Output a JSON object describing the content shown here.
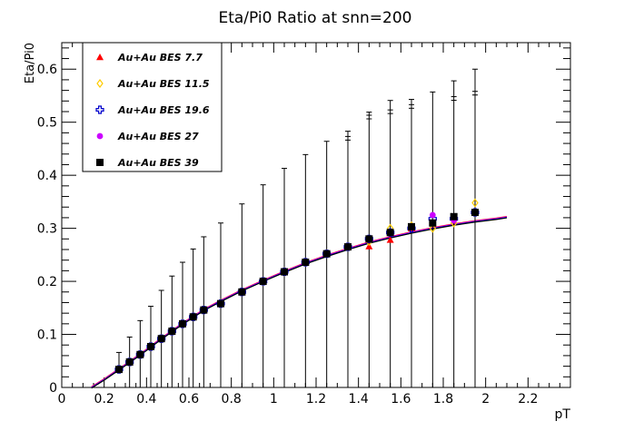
{
  "chart_data": {
    "type": "scatter",
    "title": "Eta/Pi0 Ratio at   snn=200",
    "xlabel": "pT",
    "ylabel": "Eta/Pi0",
    "xlim": [
      0,
      2.4
    ],
    "ylim": [
      0,
      0.65
    ],
    "grid": false,
    "legend_position": "top-left",
    "x_ticks": [
      "0",
      "0.2",
      "0.4",
      "0.6",
      "0.8",
      "1",
      "1.2",
      "1.4",
      "1.6",
      "1.8",
      "2",
      "2.2"
    ],
    "y_ticks": [
      "0",
      "0.1",
      "0.2",
      "0.3",
      "0.4",
      "0.5",
      "0.6"
    ],
    "series": [
      {
        "name": "Au+Au BES 7.7",
        "marker": "triangle",
        "color": "#ff0000",
        "x": [
          0.27,
          0.32,
          0.37,
          0.42,
          0.47,
          0.52,
          0.57,
          0.62,
          0.67,
          0.75,
          0.85,
          0.95,
          1.05,
          1.15,
          1.25,
          1.35,
          1.45,
          1.55,
          1.65,
          1.75,
          1.85,
          1.95
        ],
        "y": [
          0.034,
          0.048,
          0.062,
          0.077,
          0.092,
          0.106,
          0.12,
          0.133,
          0.146,
          0.158,
          0.18,
          0.2,
          0.218,
          0.236,
          0.252,
          0.265,
          0.266,
          0.278,
          0.3,
          0.31,
          0.32,
          0.33
        ]
      },
      {
        "name": "Au+Au BES 11.5",
        "marker": "diamond-open",
        "color": "#ffcc00",
        "x": [
          0.27,
          0.32,
          0.37,
          0.42,
          0.47,
          0.52,
          0.57,
          0.62,
          0.67,
          0.75,
          0.85,
          0.95,
          1.05,
          1.15,
          1.25,
          1.35,
          1.45,
          1.55,
          1.65,
          1.75,
          1.85,
          1.95
        ],
        "y": [
          0.034,
          0.048,
          0.062,
          0.077,
          0.092,
          0.106,
          0.12,
          0.133,
          0.146,
          0.158,
          0.18,
          0.2,
          0.218,
          0.236,
          0.252,
          0.265,
          0.275,
          0.3,
          0.305,
          0.3,
          0.31,
          0.348
        ]
      },
      {
        "name": "Au+Au BES 19.6",
        "marker": "cross-open",
        "color": "#0000cc",
        "x": [
          0.27,
          0.32,
          0.37,
          0.42,
          0.47,
          0.52,
          0.57,
          0.62,
          0.67,
          0.75,
          0.85,
          0.95,
          1.05,
          1.15,
          1.25,
          1.35,
          1.45,
          1.55,
          1.65,
          1.75,
          1.85,
          1.95
        ],
        "y": [
          0.034,
          0.048,
          0.062,
          0.077,
          0.092,
          0.106,
          0.12,
          0.133,
          0.146,
          0.158,
          0.18,
          0.2,
          0.218,
          0.236,
          0.252,
          0.265,
          0.28,
          0.292,
          0.3,
          0.318,
          0.318,
          0.33
        ]
      },
      {
        "name": "Au+Au BES 27",
        "marker": "circle",
        "color": "#cc00ff",
        "x": [
          0.27,
          0.32,
          0.37,
          0.42,
          0.47,
          0.52,
          0.57,
          0.62,
          0.67,
          0.75,
          0.85,
          0.95,
          1.05,
          1.15,
          1.25,
          1.35,
          1.45,
          1.55,
          1.65,
          1.75,
          1.85,
          1.95
        ],
        "y": [
          0.034,
          0.048,
          0.062,
          0.077,
          0.092,
          0.106,
          0.12,
          0.133,
          0.146,
          0.158,
          0.18,
          0.2,
          0.218,
          0.236,
          0.252,
          0.265,
          0.28,
          0.292,
          0.303,
          0.325,
          0.315,
          0.33
        ]
      },
      {
        "name": "Au+Au BES 39",
        "marker": "square",
        "color": "#000000",
        "x": [
          0.27,
          0.32,
          0.37,
          0.42,
          0.47,
          0.52,
          0.57,
          0.62,
          0.67,
          0.75,
          0.85,
          0.95,
          1.05,
          1.15,
          1.25,
          1.35,
          1.45,
          1.55,
          1.65,
          1.75,
          1.85,
          1.95
        ],
        "y": [
          0.034,
          0.048,
          0.062,
          0.077,
          0.092,
          0.106,
          0.12,
          0.133,
          0.146,
          0.158,
          0.18,
          0.2,
          0.218,
          0.236,
          0.252,
          0.265,
          0.28,
          0.292,
          0.303,
          0.31,
          0.322,
          0.33
        ],
        "y_err_low": [
          0.002,
          0.048,
          0.062,
          0.077,
          0.092,
          0.106,
          0.12,
          0.133,
          0.146,
          0.158,
          0.18,
          0.2,
          0.218,
          0.236,
          0.252,
          0.265,
          0.28,
          0.292,
          0.303,
          0.31,
          0.322,
          0.33
        ],
        "y_err_high": [
          0.032,
          0.047,
          0.064,
          0.076,
          0.091,
          0.104,
          0.116,
          0.128,
          0.138,
          0.152,
          0.166,
          0.182,
          0.195,
          0.203,
          0.212,
          0.218,
          0.239,
          0.249,
          0.24,
          0.247,
          0.256,
          0.27
        ],
        "y_upper_caps": [
          0.48,
          0.52,
          0.53,
          0.54,
          0.555,
          0.565
        ],
        "x_upper_caps": [
          1.35,
          1.45,
          1.55,
          1.65,
          1.85,
          1.95
        ]
      }
    ],
    "fit_curves": [
      {
        "color": "#ff0000"
      },
      {
        "color": "#ff00ff"
      },
      {
        "color": "#0000ff"
      },
      {
        "color": "#000000"
      }
    ],
    "fit_curve_points": {
      "x": [
        0.14,
        0.2,
        0.27,
        0.32,
        0.37,
        0.42,
        0.47,
        0.52,
        0.57,
        0.62,
        0.67,
        0.75,
        0.85,
        0.95,
        1.05,
        1.15,
        1.25,
        1.35,
        1.45,
        1.55,
        1.65,
        1.75,
        1.85,
        1.95,
        2.05,
        2.1
      ],
      "y": [
        0.0,
        0.015,
        0.034,
        0.048,
        0.062,
        0.077,
        0.092,
        0.106,
        0.12,
        0.133,
        0.146,
        0.163,
        0.183,
        0.201,
        0.218,
        0.234,
        0.248,
        0.261,
        0.273,
        0.283,
        0.292,
        0.3,
        0.307,
        0.313,
        0.318,
        0.321
      ]
    }
  }
}
